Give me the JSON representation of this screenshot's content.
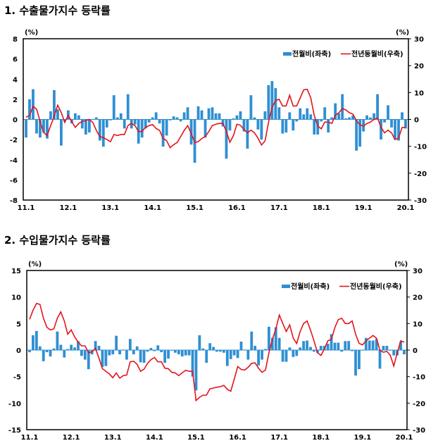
{
  "chart_data": [
    {
      "type": "bar+line",
      "title": "1. 수출물가지수 등락률",
      "left_unit": "(%)",
      "right_unit": "(%)",
      "ylim_left": [
        -8,
        8
      ],
      "yticks_left": [
        8,
        6,
        4,
        2,
        0,
        -2,
        -4,
        -6,
        -8
      ],
      "ylim_right": [
        -30,
        30
      ],
      "yticks_right": [
        30,
        20,
        10,
        0,
        -10,
        -20,
        -30
      ],
      "xtick_labels": [
        "11.1",
        "12.1",
        "13.1",
        "14.1",
        "15.1",
        "16.1",
        "17.1",
        "18.1",
        "19.1",
        "20.1"
      ],
      "legend_position": "top-right",
      "grid": false,
      "colors": {
        "bar": "#2f8fd3",
        "line": "#e3141c"
      },
      "series": [
        {
          "name": "전월비(좌축)",
          "axis": "left",
          "type": "bar",
          "values": [
            -1.8,
            2.0,
            3.0,
            -1.4,
            -1.8,
            -1.3,
            -1.9,
            0.8,
            2.9,
            1.0,
            -2.6,
            -0.2,
            0.9,
            -0.4,
            0.6,
            0.4,
            -0.9,
            -1.5,
            -1.3,
            0.0,
            0.2,
            -2.1,
            -2.7,
            -0.8,
            -0.1,
            2.4,
            0.2,
            0.6,
            -0.9,
            2.5,
            -0.9,
            -0.5,
            -2.4,
            -1.8,
            -0.9,
            -0.3,
            0.2,
            0.7,
            -0.4,
            -2.7,
            -1.6,
            -0.1,
            0.3,
            0.2,
            -0.2,
            0.7,
            1.2,
            -2.5,
            -4.3,
            1.3,
            0.9,
            -1.8,
            1.1,
            1.2,
            0.6,
            0.6,
            -0.7,
            -3.9,
            -1.1,
            0.1,
            0.4,
            0.8,
            -1.2,
            -2.9,
            2.4,
            0.2,
            -1.0,
            -2.0,
            0.8,
            3.4,
            3.8,
            3.1,
            1.2,
            -1.4,
            -1.3,
            0.7,
            -1.1,
            -0.2,
            1.1,
            0.5,
            1.1,
            0.5,
            -1.5,
            -1.5,
            -0.2,
            1.2,
            -1.3,
            0.2,
            1.6,
            0.6,
            2.5,
            0.1,
            0.2,
            0.4,
            -3.1,
            -2.7,
            -1.2,
            0.4,
            0.2,
            0.6,
            2.5,
            -2.0,
            -0.3,
            1.4,
            -0.8,
            -2.0,
            -2.1,
            0.7,
            -0.9
          ]
        },
        {
          "name": "전년동월비(우축)",
          "axis": "right",
          "type": "line",
          "values": [
            0.8,
            1.5,
            4.9,
            3.8,
            -0.8,
            -4.9,
            -6.0,
            -2.3,
            1.1,
            5.3,
            2.6,
            -1.1,
            1.5,
            -0.8,
            -3.0,
            -1.5,
            -0.8,
            -0.4,
            0.0,
            -1.1,
            -4.1,
            -6.4,
            -6.8,
            -7.5,
            -8.3,
            -5.6,
            -6.0,
            -5.6,
            -5.6,
            -2.3,
            -1.5,
            -2.3,
            -4.5,
            -4.5,
            -3.0,
            -2.3,
            -1.9,
            -3.4,
            -4.1,
            -7.1,
            -7.9,
            -10.5,
            -9.4,
            -8.6,
            -6.4,
            -4.1,
            -2.3,
            -5.3,
            -8.6,
            -8.3,
            -7.1,
            -6.4,
            -4.5,
            -2.3,
            -1.8,
            -1.5,
            -1.5,
            -4.5,
            -8.5,
            -6.0,
            -1.8,
            -2.2,
            -3.7,
            -5.0,
            -4.0,
            -5.0,
            -7.0,
            -9.5,
            -8.0,
            -1.0,
            4.5,
            7.0,
            7.5,
            5.0,
            5.0,
            9.0,
            5.0,
            5.0,
            8.0,
            11.0,
            11.2,
            8.0,
            1.5,
            -2.5,
            -3.5,
            -1.0,
            -1.0,
            -1.5,
            1.5,
            2.5,
            4.0,
            3.5,
            2.5,
            2.0,
            -0.5,
            -2.0,
            -2.5,
            -1.5,
            -1.0,
            0.0,
            0.5,
            -3.0,
            -5.0,
            -4.0,
            -5.0,
            -7.5,
            -7.0,
            -3.0,
            -3.0
          ]
        }
      ]
    },
    {
      "type": "bar+line",
      "title": "2. 수입물가지수 등락률",
      "left_unit": "(%)",
      "right_unit": "(%)",
      "ylim_left": [
        -15,
        15
      ],
      "yticks_left": [
        15,
        10,
        5,
        0,
        -5,
        -10,
        -15
      ],
      "ylim_right": [
        -30,
        30
      ],
      "yticks_right": [
        30,
        20,
        10,
        0,
        -10,
        -20,
        -30
      ],
      "xtick_labels": [
        "11.1",
        "12.1",
        "13.1",
        "14.1",
        "15.1",
        "16.1",
        "17.1",
        "18.1",
        "19.1",
        "20.1"
      ],
      "legend_position": "top-right",
      "grid": false,
      "colors": {
        "bar": "#2f8fd3",
        "line": "#e3141c"
      },
      "series": [
        {
          "name": "전월비(좌축)",
          "axis": "left",
          "type": "bar",
          "values": [
            -0.4,
            2.8,
            3.6,
            0.7,
            -2.1,
            -0.4,
            -1.2,
            0.3,
            3.5,
            1.0,
            -1.4,
            0.2,
            1.0,
            0.5,
            1.7,
            -1.1,
            -1.8,
            -3.6,
            -0.8,
            1.7,
            0.8,
            -3.2,
            -3.0,
            -1.0,
            -0.8,
            2.7,
            -0.8,
            0.1,
            -1.8,
            2.1,
            -0.8,
            0.7,
            -2.3,
            -2.4,
            -0.3,
            0.4,
            -0.2,
            0.9,
            -0.4,
            -2.4,
            -1.6,
            -0.1,
            -0.5,
            -0.8,
            -1.2,
            -1.0,
            -1.0,
            -5.0,
            -7.6,
            2.8,
            0.3,
            -2.4,
            1.3,
            0.6,
            -0.3,
            -0.3,
            -0.5,
            -3.0,
            -1.7,
            -1.0,
            -1.5,
            1.6,
            0.1,
            -1.8,
            3.5,
            0.8,
            -2.9,
            -1.8,
            0.2,
            4.4,
            2.3,
            4.3,
            2.3,
            -2.2,
            -2.2,
            0.5,
            -1.3,
            -1.1,
            0.5,
            1.7,
            1.8,
            0.6,
            -0.3,
            -0.5,
            0.8,
            0.8,
            1.2,
            3.0,
            1.4,
            1.4,
            -0.3,
            1.7,
            1.7,
            -0.2,
            -4.8,
            -3.6,
            -0.1,
            2.3,
            1.8,
            1.8,
            2.1,
            -3.5,
            0.8,
            0.8,
            -0.1,
            -1.0,
            -1.0,
            1.6,
            -0.8
          ]
        },
        {
          "name": "전년동월비(우축)",
          "axis": "right",
          "type": "line",
          "values": [
            11.6,
            15.0,
            17.6,
            17.2,
            12.0,
            8.6,
            7.6,
            8.0,
            12.0,
            14.4,
            11.0,
            6.0,
            7.6,
            5.0,
            3.0,
            1.6,
            1.6,
            -1.0,
            -0.6,
            0.6,
            -3.0,
            -7.0,
            -8.0,
            -9.0,
            -10.4,
            -8.6,
            -10.6,
            -9.6,
            -9.4,
            -4.4,
            -4.2,
            -5.4,
            -8.0,
            -7.2,
            -5.0,
            -3.6,
            -2.8,
            -4.4,
            -4.4,
            -6.8,
            -7.0,
            -8.4,
            -8.6,
            -9.6,
            -8.6,
            -7.6,
            -8.0,
            -8.0,
            -19.0,
            -17.8,
            -17.0,
            -17.0,
            -14.6,
            -14.3,
            -14.0,
            -13.8,
            -13.3,
            -14.8,
            -15.5,
            -11.0,
            -6.2,
            -7.3,
            -7.5,
            -6.5,
            -5.0,
            -4.8,
            -6.8,
            -8.4,
            -7.5,
            -1.0,
            4.0,
            8.0,
            13.2,
            10.0,
            7.0,
            9.5,
            4.5,
            2.5,
            7.0,
            10.0,
            11.0,
            7.5,
            3.5,
            -1.0,
            -2.0,
            0.5,
            3.5,
            4.0,
            8.5,
            11.5,
            12.0,
            10.0,
            10.0,
            11.0,
            6.0,
            2.5,
            2.0,
            3.5,
            4.5,
            5.5,
            4.5,
            0.0,
            -0.8,
            -0.5,
            -2.0,
            -6.0,
            -1.0,
            3.5,
            3.0
          ]
        }
      ]
    }
  ]
}
